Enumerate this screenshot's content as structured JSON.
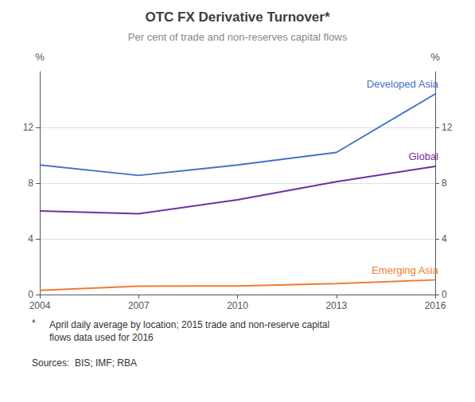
{
  "chart_data": {
    "type": "line",
    "title": "OTC FX Derivative Turnover*",
    "subtitle": "Per cent of trade and non-reserves capital flows",
    "annotations": [
      "*",
      "April daily average by location; 2015 trade and non-reserve capital\nflows data used for 2016",
      "Sources:  BIS; IMF; RBA"
    ],
    "ylabel": "%",
    "y2label": "%",
    "x": [
      2004,
      2007,
      2010,
      2013,
      2016
    ],
    "xlim": [
      2004,
      2016
    ],
    "xticks": [
      2004,
      2007,
      2010,
      2013,
      2016
    ],
    "ylim": [
      0,
      16
    ],
    "yticks": [
      0,
      4,
      8,
      12
    ],
    "y2lim": [
      0,
      16
    ],
    "y2ticks": [
      0,
      4,
      8,
      12
    ],
    "grid": true,
    "series": [
      {
        "name": "Developed Asia",
        "color": "#4472C4",
        "values": [
          9.3,
          8.55,
          9.3,
          10.2,
          14.4
        ]
      },
      {
        "name": "Global",
        "color": "#7030A0",
        "values": [
          6.0,
          5.8,
          6.8,
          8.1,
          9.2
        ]
      },
      {
        "name": "Emerging Asia",
        "color": "#ED7D31",
        "values": [
          0.3,
          0.6,
          0.62,
          0.78,
          1.05
        ]
      }
    ]
  }
}
